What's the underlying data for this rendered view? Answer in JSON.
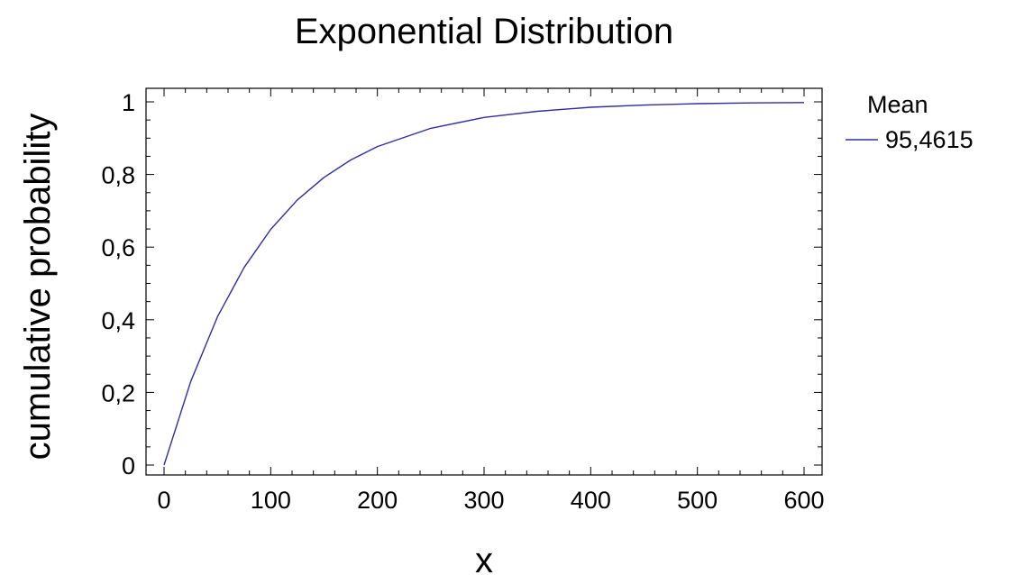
{
  "chart_data": {
    "type": "line",
    "title": "Exponential Distribution",
    "xlabel": "x",
    "ylabel": "cumulative probability",
    "xlim": [
      0,
      600
    ],
    "ylim": [
      0,
      1
    ],
    "x_ticks": [
      0,
      100,
      200,
      300,
      400,
      500,
      600
    ],
    "x_tick_labels": [
      "0",
      "100",
      "200",
      "300",
      "400",
      "500",
      "600"
    ],
    "y_ticks": [
      0,
      0.2,
      0.4,
      0.6,
      0.8,
      1
    ],
    "y_tick_labels": [
      "0",
      "0,2",
      "0,4",
      "0,6",
      "0,8",
      "1"
    ],
    "grid": false,
    "legend_position": "right",
    "legend_title": "Mean",
    "series": [
      {
        "name": "95,4615",
        "color": "#2e2ea0",
        "x": [
          0,
          25,
          50,
          75,
          100,
          125,
          150,
          175,
          200,
          250,
          300,
          350,
          400,
          450,
          500,
          550,
          600
        ],
        "values": [
          0,
          0.23,
          0.408,
          0.544,
          0.649,
          0.73,
          0.792,
          0.84,
          0.877,
          0.927,
          0.957,
          0.974,
          0.985,
          0.991,
          0.995,
          0.997,
          0.998
        ]
      }
    ]
  }
}
